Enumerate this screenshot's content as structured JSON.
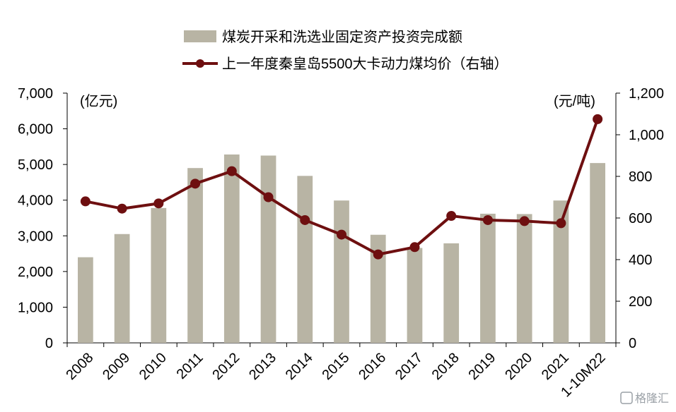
{
  "chart_data": {
    "type": "bar",
    "categories": [
      "2008",
      "2009",
      "2010",
      "2011",
      "2012",
      "2013",
      "2014",
      "2015",
      "2016",
      "2017",
      "2018",
      "2019",
      "2020",
      "2021",
      "1-10M22"
    ],
    "series": [
      {
        "name": "煤炭开采和洗选业固定资产投资完成额",
        "type": "bar",
        "axis": "left",
        "color": "#b8b4a4",
        "values": [
          2400,
          3050,
          3780,
          4900,
          5280,
          5250,
          4680,
          3990,
          3030,
          2660,
          2790,
          3620,
          3610,
          3990,
          5040
        ]
      },
      {
        "name": "上一年度秦皇岛5500大卡动力煤均价（右轴）",
        "type": "line",
        "axis": "right",
        "color": "#6e0f10",
        "values": [
          680,
          645,
          670,
          765,
          825,
          700,
          590,
          520,
          425,
          460,
          610,
          590,
          585,
          575,
          1075
        ]
      }
    ],
    "left_axis": {
      "unit_label": "(亿元)",
      "ylim": [
        0,
        7000
      ],
      "ticks": [
        "0",
        "1,000",
        "2,000",
        "3,000",
        "4,000",
        "5,000",
        "6,000",
        "7,000"
      ]
    },
    "right_axis": {
      "unit_label": "(元/吨)",
      "ylim": [
        0,
        1200
      ],
      "ticks": [
        "0",
        "200",
        "400",
        "600",
        "800",
        "1,000",
        "1,200"
      ]
    },
    "legend_position": "top-center",
    "grid": false
  },
  "watermark": {
    "text": "格隆汇"
  }
}
